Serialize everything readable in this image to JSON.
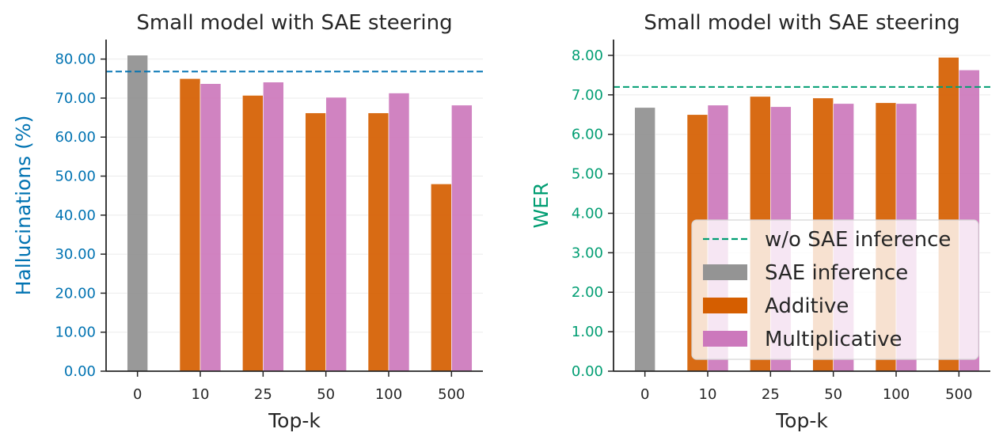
{
  "chart_data": [
    {
      "type": "bar",
      "title": "Small model with SAE steering",
      "xlabel": "Top-k",
      "ylabel": "Hallucinations (%)",
      "ylabel_color": "#0173b2",
      "ylim": [
        0,
        85
      ],
      "yticks": [
        "0.00",
        "10.00",
        "20.00",
        "30.00",
        "40.00",
        "50.00",
        "60.00",
        "70.00",
        "80.00"
      ],
      "grid": true,
      "categories": [
        "0",
        "10",
        "25",
        "50",
        "100",
        "500"
      ],
      "baseline": {
        "name": "w/o SAE inference",
        "value": 76.8,
        "color": "#0173b2"
      },
      "sae_inference": {
        "name": "SAE inference",
        "category": "0",
        "value": 81.0,
        "color": "#949494"
      },
      "series": [
        {
          "name": "Additive",
          "color": "#d55e00",
          "values": [
            null,
            75.0,
            70.7,
            66.2,
            66.2,
            48.0
          ]
        },
        {
          "name": "Multiplicative",
          "color": "#cc78bc",
          "values": [
            null,
            73.7,
            74.1,
            70.2,
            71.3,
            68.2
          ]
        }
      ],
      "legend": false
    },
    {
      "type": "bar",
      "title": "Small model with SAE steering",
      "xlabel": "Top-k",
      "ylabel": "WER",
      "ylabel_color": "#029e73",
      "ylim": [
        0,
        8.4
      ],
      "yticks": [
        "0.00",
        "1.00",
        "2.00",
        "3.00",
        "4.00",
        "5.00",
        "6.00",
        "7.00",
        "8.00"
      ],
      "grid": true,
      "categories": [
        "0",
        "10",
        "25",
        "50",
        "100",
        "500"
      ],
      "baseline": {
        "name": "w/o SAE inference",
        "value": 7.2,
        "color": "#029e73"
      },
      "sae_inference": {
        "name": "SAE inference",
        "category": "0",
        "value": 6.68,
        "color": "#949494"
      },
      "series": [
        {
          "name": "Additive",
          "color": "#d55e00",
          "values": [
            null,
            6.5,
            6.96,
            6.92,
            6.8,
            7.95
          ]
        },
        {
          "name": "Multiplicative",
          "color": "#cc78bc",
          "values": [
            null,
            6.74,
            6.7,
            6.78,
            6.78,
            7.63
          ]
        }
      ],
      "legend": true,
      "legend_position": "lower-right"
    }
  ]
}
